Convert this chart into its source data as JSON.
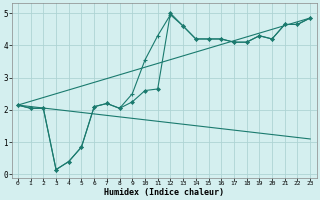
{
  "xlabel": "Humidex (Indice chaleur)",
  "bg_color": "#d4efef",
  "line_color": "#1a7a6e",
  "xlim": [
    -0.5,
    23.5
  ],
  "ylim": [
    -0.1,
    5.3
  ],
  "xticks": [
    0,
    1,
    2,
    3,
    4,
    5,
    6,
    7,
    8,
    9,
    10,
    11,
    12,
    13,
    14,
    15,
    16,
    17,
    18,
    19,
    20,
    21,
    22,
    23
  ],
  "yticks": [
    0,
    1,
    2,
    3,
    4,
    5
  ],
  "grid_color": "#aed4d4",
  "line1_x": [
    0,
    1,
    2,
    3,
    4,
    5,
    6,
    7,
    8,
    9,
    10,
    11,
    12,
    13,
    14,
    15,
    16,
    17,
    18,
    19,
    20,
    21,
    22,
    23
  ],
  "line1_y": [
    2.15,
    2.05,
    2.05,
    0.15,
    0.4,
    0.85,
    2.1,
    2.2,
    2.05,
    2.25,
    2.6,
    2.65,
    5.0,
    4.6,
    4.2,
    4.2,
    4.2,
    4.1,
    4.1,
    4.3,
    4.2,
    4.65,
    4.65,
    4.85
  ],
  "line2_x": [
    0,
    1,
    2,
    3,
    4,
    5,
    6,
    7,
    8,
    9,
    10,
    11,
    12,
    13,
    14,
    15,
    16,
    17,
    18,
    19,
    20,
    21,
    22,
    23
  ],
  "line2_y": [
    2.15,
    2.05,
    2.05,
    0.15,
    0.4,
    0.85,
    2.1,
    2.2,
    2.05,
    2.5,
    3.55,
    4.3,
    4.95,
    4.6,
    4.2,
    4.2,
    4.2,
    4.1,
    4.1,
    4.3,
    4.2,
    4.65,
    4.65,
    4.85
  ],
  "line3_x": [
    0,
    23
  ],
  "line3_y": [
    2.15,
    4.85
  ],
  "line4_x": [
    0,
    23
  ],
  "line4_y": [
    2.15,
    1.1
  ]
}
